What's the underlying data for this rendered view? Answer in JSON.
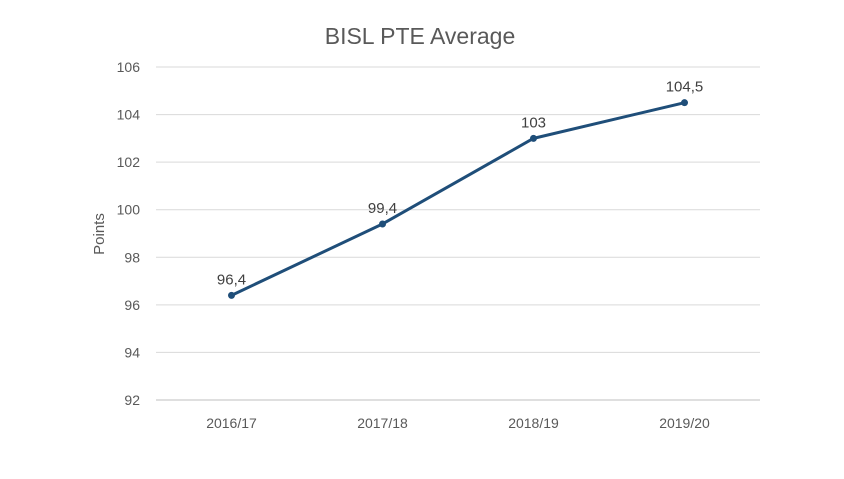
{
  "chart_data": {
    "type": "line",
    "title": "BISL PTE Average",
    "xlabel": "",
    "ylabel": "Points",
    "categories": [
      "2016/17",
      "2017/18",
      "2018/19",
      "2019/20"
    ],
    "series": [
      {
        "values": [
          96.4,
          99.4,
          103,
          104.5
        ],
        "data_labels": [
          "96,4",
          "99,4",
          "103",
          "104,5"
        ],
        "color": "#1f4e79"
      }
    ],
    "ylim": [
      92,
      106
    ],
    "yticks": [
      "92",
      "94",
      "96",
      "98",
      "100",
      "102",
      "104",
      "106"
    ],
    "grid": true,
    "legend": "none"
  }
}
